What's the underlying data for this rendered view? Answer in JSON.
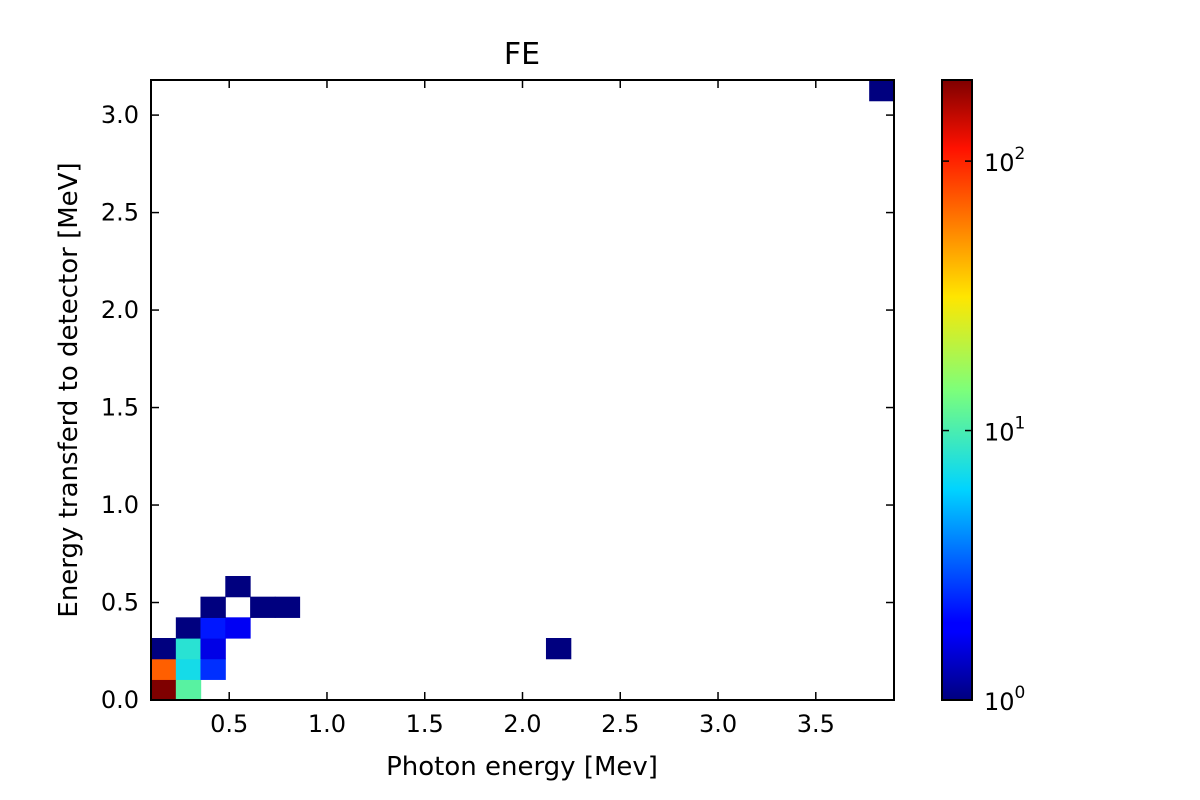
{
  "chart_data": {
    "type": "heatmap",
    "title": "FE",
    "xlabel": "Photon energy [Mev]",
    "ylabel": "Energy transferd to detector [MeV]",
    "xlim": [
      0.1,
      3.9
    ],
    "ylim": [
      0.0,
      3.18
    ],
    "x_ticks": [
      0.5,
      1.0,
      1.5,
      2.0,
      2.5,
      3.0,
      3.5
    ],
    "x_tick_labels": [
      "0.5",
      "1.0",
      "1.5",
      "2.0",
      "2.5",
      "3.0",
      "3.5"
    ],
    "y_ticks": [
      0.0,
      0.5,
      1.0,
      1.5,
      2.0,
      2.5,
      3.0
    ],
    "y_tick_labels": [
      "0.0",
      "0.5",
      "1.0",
      "1.5",
      "2.0",
      "2.5",
      "3.0"
    ],
    "bin_width_x": 0.1266,
    "bin_width_y": 0.106,
    "colormap": "jet",
    "color_scale": "log",
    "colorbar_range": [
      1,
      200
    ],
    "colorbar_ticks": [
      {
        "value": 1,
        "base": "10",
        "exp": "0"
      },
      {
        "value": 10,
        "base": "10",
        "exp": "1"
      },
      {
        "value": 100,
        "base": "10",
        "exp": "2"
      }
    ],
    "cells": [
      {
        "x": 0.1,
        "y": 0.0,
        "count": 200
      },
      {
        "x": 0.227,
        "y": 0.0,
        "count": 11
      },
      {
        "x": 0.1,
        "y": 0.106,
        "count": 70
      },
      {
        "x": 0.227,
        "y": 0.106,
        "count": 7
      },
      {
        "x": 0.353,
        "y": 0.106,
        "count": 2.5
      },
      {
        "x": 0.1,
        "y": 0.212,
        "count": 1
      },
      {
        "x": 0.227,
        "y": 0.212,
        "count": 8
      },
      {
        "x": 0.353,
        "y": 0.212,
        "count": 1.6
      },
      {
        "x": 0.227,
        "y": 0.318,
        "count": 1
      },
      {
        "x": 0.353,
        "y": 0.318,
        "count": 2.2
      },
      {
        "x": 0.48,
        "y": 0.318,
        "count": 1.7
      },
      {
        "x": 0.353,
        "y": 0.424,
        "count": 1
      },
      {
        "x": 0.607,
        "y": 0.424,
        "count": 1
      },
      {
        "x": 0.733,
        "y": 0.424,
        "count": 1
      },
      {
        "x": 0.48,
        "y": 0.53,
        "count": 1
      },
      {
        "x": 2.12,
        "y": 0.212,
        "count": 1
      },
      {
        "x": 3.773,
        "y": 3.074,
        "count": 1
      }
    ]
  }
}
